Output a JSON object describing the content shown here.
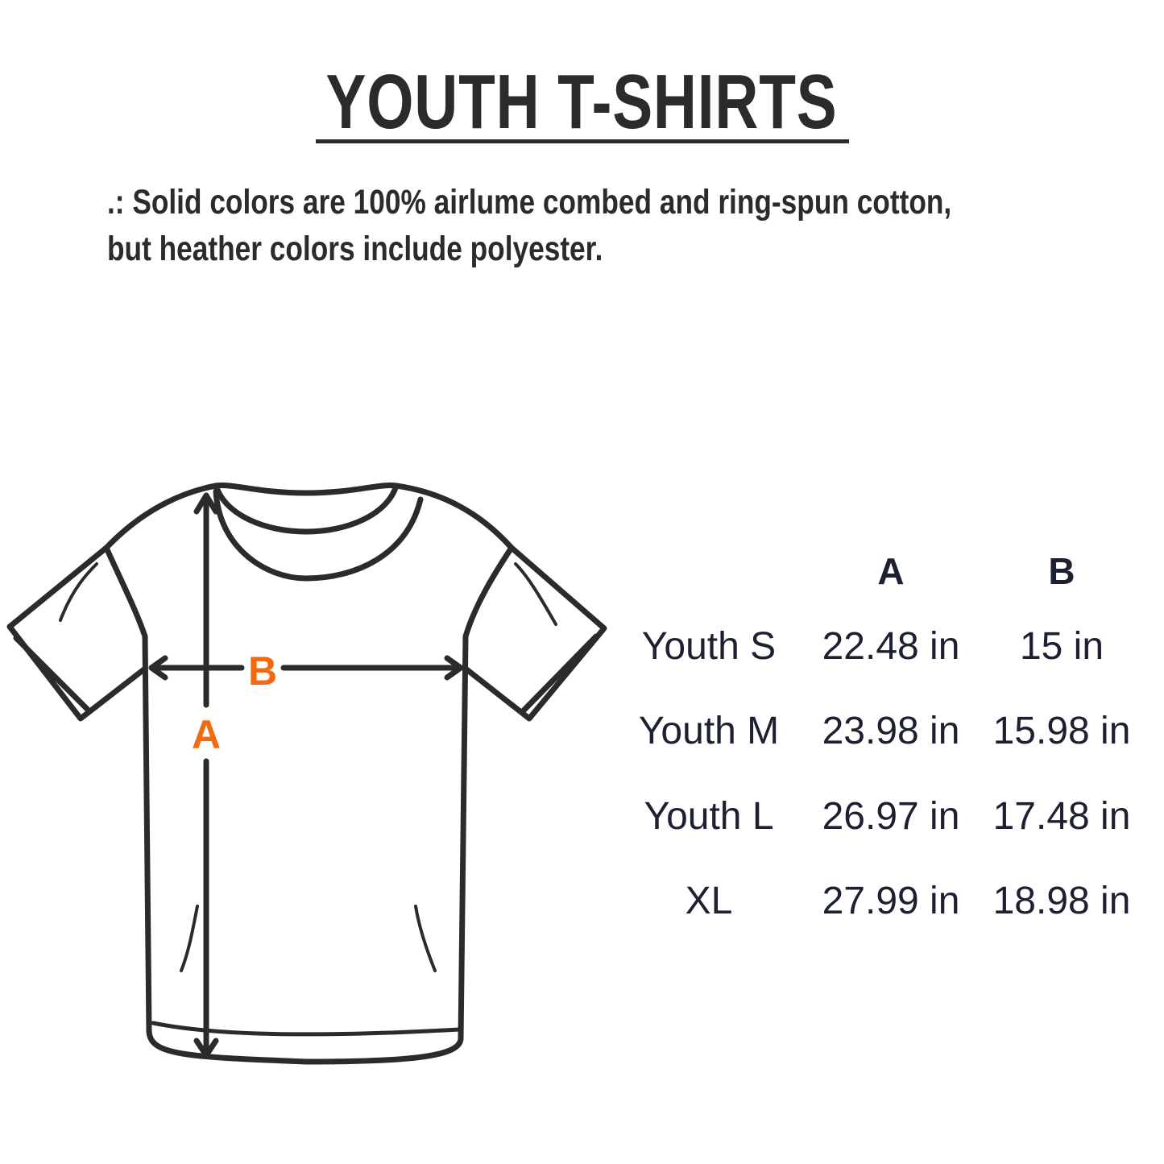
{
  "title": "YOUTH T-SHIRTS",
  "description": [
    ".: Solid colors are 100% airlume combed and ring-spun cotton,",
    "but heather colors include polyester."
  ],
  "diagram": {
    "label_a": "A",
    "label_b": "B",
    "label_color": "#f26a10",
    "line_color": "#2b2b2b"
  },
  "size_table": {
    "headers": [
      "",
      "A",
      "B"
    ],
    "rows": [
      {
        "size": "Youth S",
        "a": "22.48 in",
        "b": "15 in"
      },
      {
        "size": "Youth M",
        "a": "23.98 in",
        "b": "15.98 in"
      },
      {
        "size": "Youth L",
        "a": "26.97 in",
        "b": "17.48 in"
      },
      {
        "size": "XL",
        "a": "27.99 in",
        "b": "18.98 in"
      }
    ]
  }
}
